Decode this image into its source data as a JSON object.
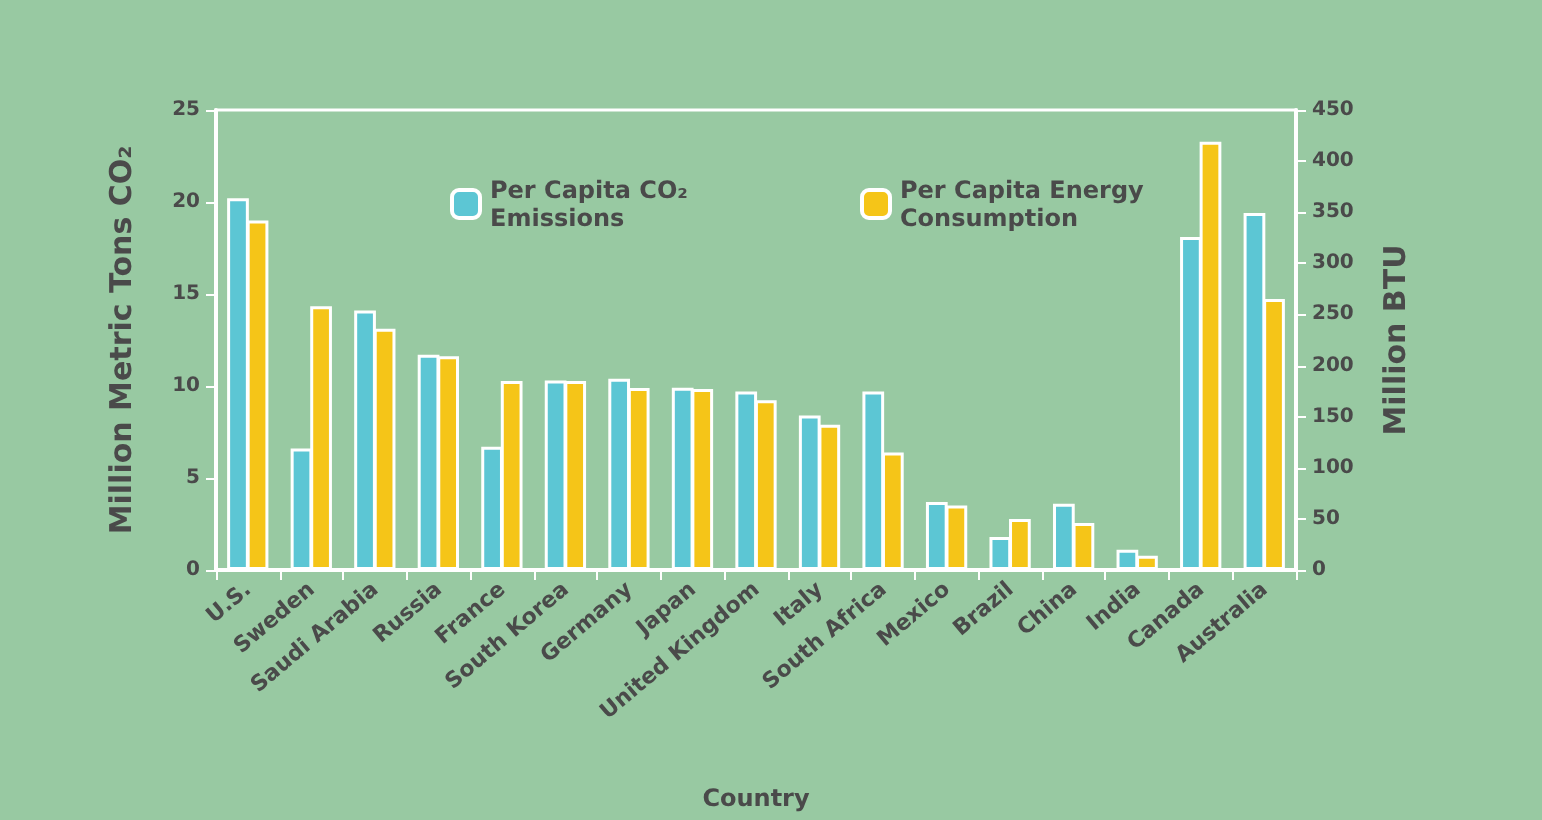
{
  "chart_data": {
    "type": "bar",
    "xlabel": "Country",
    "ylabel": "Million Metric Tons CO₂",
    "y2label": "Million BTU",
    "categories": [
      "U.S.",
      "Sweden",
      "Saudi Arabia",
      "Russia",
      "France",
      "South Korea",
      "Germany",
      "Japan",
      "United Kingdom",
      "Italy",
      "South Africa",
      "Mexico",
      "Brazil",
      "China",
      "India",
      "Canada",
      "Australia"
    ],
    "series": [
      {
        "name": "Per Capita CO₂ Emissions",
        "color": "#5cc6d4",
        "values": [
          20.2,
          6.6,
          14.1,
          11.7,
          6.7,
          10.3,
          10.4,
          9.9,
          9.7,
          8.4,
          9.7,
          3.7,
          1.8,
          3.6,
          1.1,
          18.1,
          19.4
        ]
      },
      {
        "name": "Per Capita Energy Consumption",
        "color": "#f5c518",
        "axis": "y2",
        "values": [
          342,
          258,
          236,
          209,
          185,
          185,
          178,
          177,
          166,
          142,
          115,
          63,
          50,
          46,
          14,
          419,
          265
        ]
      }
    ],
    "ylim": [
      0,
      25
    ],
    "yticks": [
      0,
      5,
      10,
      15,
      20,
      25
    ],
    "y2lim": [
      0,
      450
    ],
    "y2ticks": [
      0,
      50,
      100,
      150,
      200,
      250,
      300,
      350,
      400,
      450
    ],
    "grid": false,
    "legend": "top"
  }
}
